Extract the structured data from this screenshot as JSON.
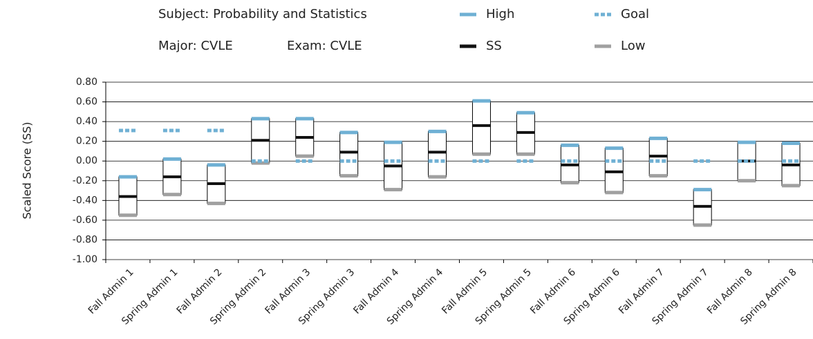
{
  "chart_data": {
    "type": "range",
    "header": [
      "Subject: Probability and Statistics",
      "Major: CVLE",
      "Exam: CVLE"
    ],
    "y_label": "Scaled Score (SS)",
    "categories": [
      "Fall Admin 1",
      "Spring Admin 1",
      "Fall Admin 2",
      "Spring Admin 2",
      "Fall Admin 3",
      "Spring Admin 3",
      "Fall Admin 4",
      "Spring Admin 4",
      "Fall Admin 5",
      "Spring Admin 5",
      "Fall Admin 6",
      "Spring Admin 6",
      "Fall Admin 7",
      "Spring Admin 7",
      "Fall Admin 8",
      "Spring Admin 8"
    ],
    "series": [
      {
        "name": "High",
        "color": "#6fb0d4",
        "style": "solid",
        "values": [
          -0.16,
          0.02,
          -0.04,
          0.43,
          0.43,
          0.29,
          0.19,
          0.3,
          0.61,
          0.49,
          0.16,
          0.13,
          0.23,
          -0.29,
          0.19,
          0.18
        ]
      },
      {
        "name": "SS",
        "color": "#111111",
        "style": "solid",
        "values": [
          -0.36,
          -0.16,
          -0.23,
          0.21,
          0.24,
          0.09,
          -0.05,
          0.09,
          0.36,
          0.29,
          -0.04,
          -0.11,
          0.05,
          -0.46,
          0.0,
          -0.04
        ]
      },
      {
        "name": "Low",
        "color": "#a0a0a0",
        "style": "solid",
        "values": [
          -0.55,
          -0.34,
          -0.43,
          -0.02,
          0.05,
          -0.15,
          -0.29,
          -0.16,
          0.07,
          0.07,
          -0.22,
          -0.32,
          -0.15,
          -0.65,
          -0.2,
          -0.25
        ]
      },
      {
        "name": "Goal",
        "color": "#6fb0d4",
        "style": "dotted",
        "values": [
          0.31,
          0.31,
          0.31,
          0,
          0,
          0,
          0,
          0,
          0,
          0,
          0,
          0,
          0,
          0,
          0,
          0
        ]
      }
    ],
    "ylim": [
      -1,
      0.8
    ],
    "yticks": [
      {
        "value": -1,
        "label": "-1.00"
      },
      {
        "value": -0.8,
        "label": "-0.80"
      },
      {
        "value": -0.6,
        "label": "-0.60"
      },
      {
        "value": -0.4,
        "label": "-0.40"
      },
      {
        "value": -0.2,
        "label": "-0.20"
      },
      {
        "value": 0,
        "label": "0.00"
      },
      {
        "value": 0.2,
        "label": "0.20"
      },
      {
        "value": 0.4,
        "label": "0.40"
      },
      {
        "value": 0.6,
        "label": "0.60"
      },
      {
        "value": 0.8,
        "label": "0.80"
      }
    ],
    "grid": true
  }
}
